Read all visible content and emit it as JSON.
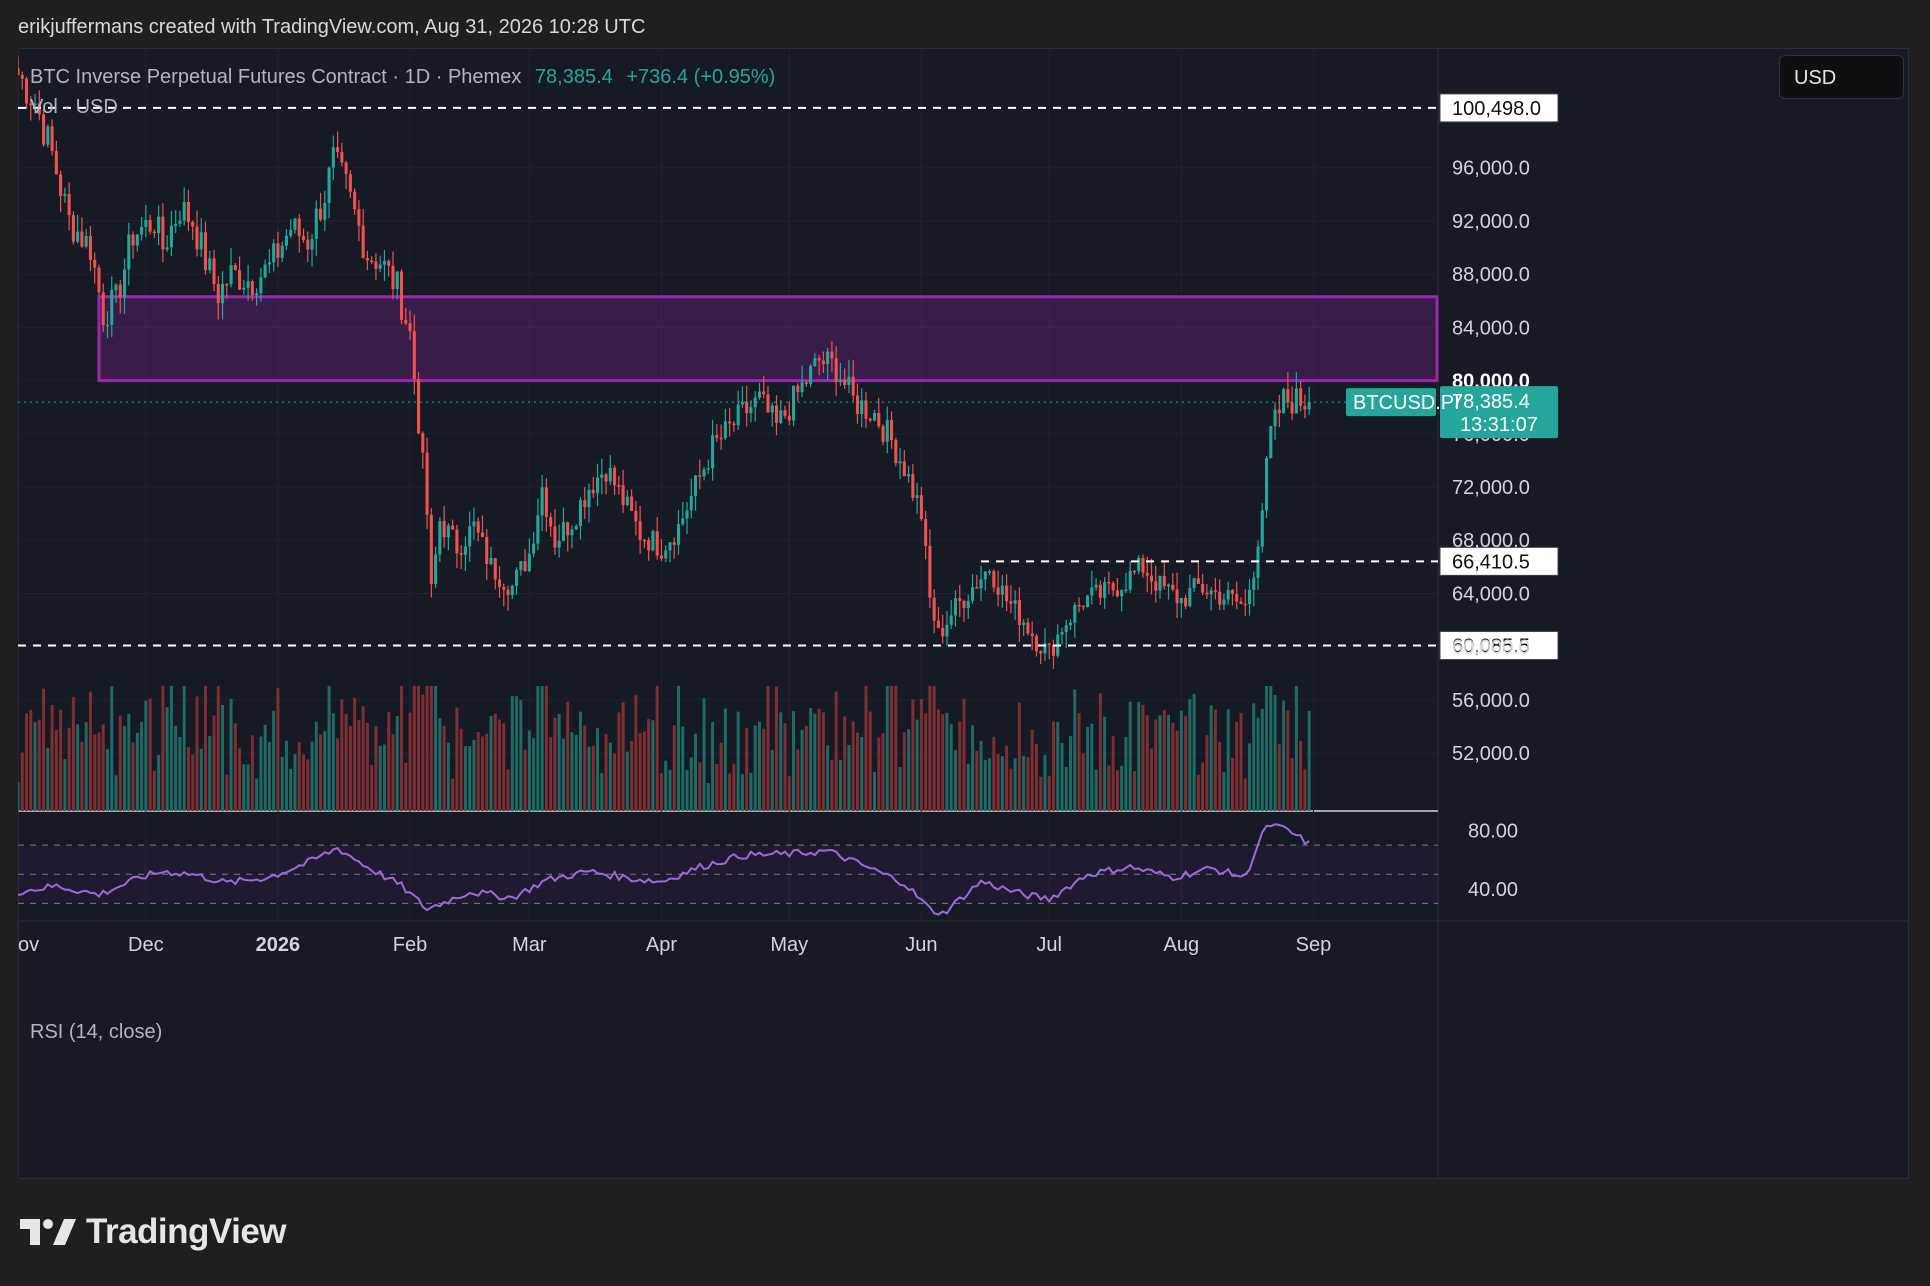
{
  "credit": "erikjuffermans created with TradingView.com, Aug 31, 2026 10:28 UTC",
  "legend": {
    "symbol": "BTC Inverse Perpetual Futures Contract",
    "timeframe": "1D",
    "exchange": "Phemex",
    "price": "78,385.4",
    "change": "+736.4 (+0.95%)",
    "volume_label": "Vol · USD"
  },
  "currency_button": "USD",
  "ticker_tag": "BTCUSD.PI",
  "price_tag": "78,385.4",
  "countdown": "13:31:07",
  "rsi_label": "RSI (14, close)",
  "logo_text": "TradingView",
  "colors": {
    "up": "#26a69a",
    "down": "#ef5350",
    "zone": "#9c27b0",
    "rsi": "#9c6ad8",
    "up_volume": "#1f6b63",
    "down_volume": "#7e2f33",
    "background": "#161a25"
  },
  "icons": [
    "tradingview-logo-icon"
  ],
  "chart_data": {
    "type": "candlestick",
    "interval": "1D",
    "y_scale": "linear",
    "ylim": [
      49000,
      105000
    ],
    "y_ticks": [
      {
        "value": 52000,
        "label": "52,000.0"
      },
      {
        "value": 56000,
        "label": "56,000.0"
      },
      {
        "value": 60000,
        "label": "60,000.0"
      },
      {
        "value": 64000,
        "label": "64,000.0"
      },
      {
        "value": 68000,
        "label": "68,000.0"
      },
      {
        "value": 72000,
        "label": "72,000.0"
      },
      {
        "value": 76000,
        "label": "76,000.0"
      },
      {
        "value": 80000,
        "label": "80,000.0"
      },
      {
        "value": 84000,
        "label": "84,000.0"
      },
      {
        "value": 88000,
        "label": "88,000.0"
      },
      {
        "value": 92000,
        "label": "92,000.0"
      },
      {
        "value": 96000,
        "label": "96,000.0"
      }
    ],
    "x_labels": [
      {
        "label": "ov",
        "date": "2025-11-01"
      },
      {
        "label": "Dec",
        "date": "2025-12-01"
      },
      {
        "label": "2026",
        "date": "2026-01-01"
      },
      {
        "label": "Feb",
        "date": "2026-02-01"
      },
      {
        "label": "Mar",
        "date": "2026-03-01"
      },
      {
        "label": "Apr",
        "date": "2026-04-01"
      },
      {
        "label": "May",
        "date": "2026-05-01"
      },
      {
        "label": "Jun",
        "date": "2026-06-01"
      },
      {
        "label": "Jul",
        "date": "2026-07-01"
      },
      {
        "label": "Aug",
        "date": "2026-08-01"
      },
      {
        "label": "Sep",
        "date": "2026-09-01"
      }
    ],
    "x_range": [
      "2025-11-01",
      "2026-09-30"
    ],
    "last_price": 78385.4,
    "horizontal_levels": [
      {
        "value": 100498.0,
        "label": "100,498.0",
        "from": "2025-11-01"
      },
      {
        "value": 66410.5,
        "label": "66,410.5",
        "from": "2026-06-15"
      },
      {
        "value": 60085.5,
        "label": "60,085.5",
        "from": "2025-11-01"
      }
    ],
    "zone": {
      "from": "2025-11-20",
      "to": "2026-09-30",
      "low": 80000,
      "high": 86300
    },
    "price_path": [
      [
        "2025-11-01",
        103000
      ],
      [
        "2025-11-05",
        101000
      ],
      [
        "2025-11-09",
        97000
      ],
      [
        "2025-11-13",
        92000
      ],
      [
        "2025-11-18",
        90000
      ],
      [
        "2025-11-21",
        85000
      ],
      [
        "2025-11-24",
        86000
      ],
      [
        "2025-11-28",
        91000
      ],
      [
        "2025-12-03",
        92000
      ],
      [
        "2025-12-05",
        90000
      ],
      [
        "2025-12-09",
        93000
      ],
      [
        "2025-12-12",
        92000
      ],
      [
        "2025-12-15",
        89000
      ],
      [
        "2025-12-18",
        86500
      ],
      [
        "2025-12-21",
        88000
      ],
      [
        "2025-12-26",
        87500
      ],
      [
        "2025-12-30",
        88500
      ],
      [
        "2026-01-04",
        91500
      ],
      [
        "2026-01-08",
        90500
      ],
      [
        "2026-01-12",
        94000
      ],
      [
        "2026-01-14",
        96500
      ],
      [
        "2026-01-17",
        94500
      ],
      [
        "2026-01-22",
        89500
      ],
      [
        "2026-01-25",
        89000
      ],
      [
        "2026-01-29",
        87000
      ],
      [
        "2026-02-01",
        83500
      ],
      [
        "2026-02-03",
        77000
      ],
      [
        "2026-02-05",
        70000
      ],
      [
        "2026-02-06",
        64000
      ],
      [
        "2026-02-08",
        69500
      ],
      [
        "2026-02-12",
        67500
      ],
      [
        "2026-02-16",
        69000
      ],
      [
        "2026-02-20",
        66000
      ],
      [
        "2026-02-25",
        64500
      ],
      [
        "2026-03-01",
        67000
      ],
      [
        "2026-03-04",
        72000
      ],
      [
        "2026-03-07",
        68000
      ],
      [
        "2026-03-11",
        69500
      ],
      [
        "2026-03-15",
        72000
      ],
      [
        "2026-03-19",
        73500
      ],
      [
        "2026-03-23",
        71000
      ],
      [
        "2026-03-27",
        68500
      ],
      [
        "2026-04-01",
        67500
      ],
      [
        "2026-04-05",
        69000
      ],
      [
        "2026-04-09",
        72000
      ],
      [
        "2026-04-13",
        75000
      ],
      [
        "2026-04-16",
        76000
      ],
      [
        "2026-04-20",
        77500
      ],
      [
        "2026-04-24",
        78500
      ],
      [
        "2026-04-28",
        76500
      ],
      [
        "2026-05-03",
        79000
      ],
      [
        "2026-05-08",
        81500
      ],
      [
        "2026-05-12",
        81000
      ],
      [
        "2026-05-16",
        78500
      ],
      [
        "2026-05-21",
        77500
      ],
      [
        "2026-05-25",
        75500
      ],
      [
        "2026-05-28",
        73500
      ],
      [
        "2026-06-01",
        70000
      ],
      [
        "2026-06-03",
        63500
      ],
      [
        "2026-06-05",
        60800
      ],
      [
        "2026-06-08",
        62500
      ],
      [
        "2026-06-13",
        64500
      ],
      [
        "2026-06-17",
        66000
      ],
      [
        "2026-06-21",
        63500
      ],
      [
        "2026-06-25",
        62000
      ],
      [
        "2026-06-28",
        60500
      ],
      [
        "2026-07-01",
        59500
      ],
      [
        "2026-07-04",
        61500
      ],
      [
        "2026-07-09",
        63500
      ],
      [
        "2026-07-14",
        64000
      ],
      [
        "2026-07-19",
        65000
      ],
      [
        "2026-07-23",
        66000
      ],
      [
        "2026-07-27",
        64500
      ],
      [
        "2026-08-01",
        63500
      ],
      [
        "2026-08-05",
        64500
      ],
      [
        "2026-08-09",
        64000
      ],
      [
        "2026-08-13",
        63500
      ],
      [
        "2026-08-16",
        63000
      ],
      [
        "2026-08-18",
        66000
      ],
      [
        "2026-08-20",
        70500
      ],
      [
        "2026-08-22",
        76000
      ],
      [
        "2026-08-25",
        78500
      ],
      [
        "2026-08-28",
        78500
      ],
      [
        "2026-08-31",
        78385
      ]
    ],
    "volume": {
      "label": "Vol · USD"
    },
    "rsi": {
      "label": "RSI (14, close)",
      "ylim": [
        20,
        90
      ],
      "ticks": [
        {
          "value": 80,
          "label": "80.00"
        },
        {
          "value": 40,
          "label": "40.00"
        }
      ],
      "bands": {
        "upper": 70,
        "middle": 50,
        "lower": 30
      },
      "path": [
        [
          "2025-11-01",
          38
        ],
        [
          "2025-11-10",
          42
        ],
        [
          "2025-11-20",
          36
        ],
        [
          "2025-11-30",
          48
        ],
        [
          "2025-12-05",
          52
        ],
        [
          "2025-12-12",
          50
        ],
        [
          "2025-12-20",
          44
        ],
        [
          "2025-12-30",
          48
        ],
        [
          "2026-01-08",
          58
        ],
        [
          "2026-01-15",
          68
        ],
        [
          "2026-01-22",
          55
        ],
        [
          "2026-01-30",
          42
        ],
        [
          "2026-02-05",
          26
        ],
        [
          "2026-02-15",
          38
        ],
        [
          "2026-02-25",
          34
        ],
        [
          "2026-03-05",
          46
        ],
        [
          "2026-03-15",
          52
        ],
        [
          "2026-03-25",
          47
        ],
        [
          "2026-04-01",
          45
        ],
        [
          "2026-04-10",
          55
        ],
        [
          "2026-04-20",
          63
        ],
        [
          "2026-05-01",
          64
        ],
        [
          "2026-05-10",
          66
        ],
        [
          "2026-05-20",
          54
        ],
        [
          "2026-05-28",
          44
        ],
        [
          "2026-06-03",
          26
        ],
        [
          "2026-06-06",
          23
        ],
        [
          "2026-06-15",
          45
        ],
        [
          "2026-06-25",
          36
        ],
        [
          "2026-07-01",
          33
        ],
        [
          "2026-07-10",
          50
        ],
        [
          "2026-07-20",
          55
        ],
        [
          "2026-07-30",
          48
        ],
        [
          "2026-08-08",
          54
        ],
        [
          "2026-08-16",
          48
        ],
        [
          "2026-08-20",
          78
        ],
        [
          "2026-08-22",
          84
        ],
        [
          "2026-08-26",
          80
        ],
        [
          "2026-08-31",
          71
        ]
      ]
    }
  }
}
